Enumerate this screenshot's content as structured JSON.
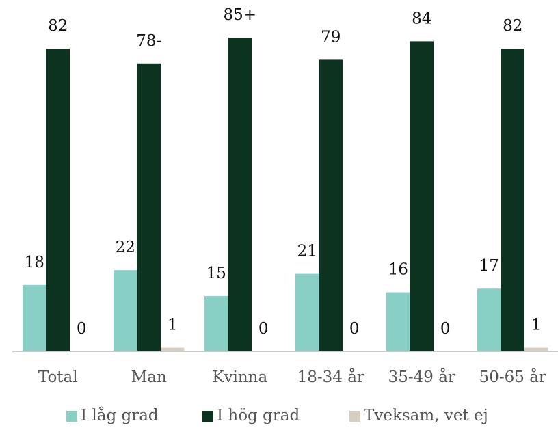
{
  "chart_data": {
    "type": "bar",
    "categories": [
      "Total",
      "Man",
      "Kvinna",
      "18-34 år",
      "35-49 år",
      "50-65 år"
    ],
    "series": [
      {
        "name": "I låg grad",
        "color": "#88cfc5",
        "values": [
          18,
          22,
          15,
          21,
          16,
          17
        ]
      },
      {
        "name": "I hög grad",
        "color": "#0b3320",
        "values": [
          82,
          78,
          85,
          79,
          84,
          82
        ],
        "value_labels": [
          "82",
          "78-",
          "85+",
          "79",
          "84",
          "82"
        ]
      },
      {
        "name": "Tveksam, vet ej",
        "color": "#d9cdc0",
        "values": [
          0,
          1,
          0,
          0,
          0,
          1
        ]
      }
    ],
    "legend": "bottom"
  }
}
